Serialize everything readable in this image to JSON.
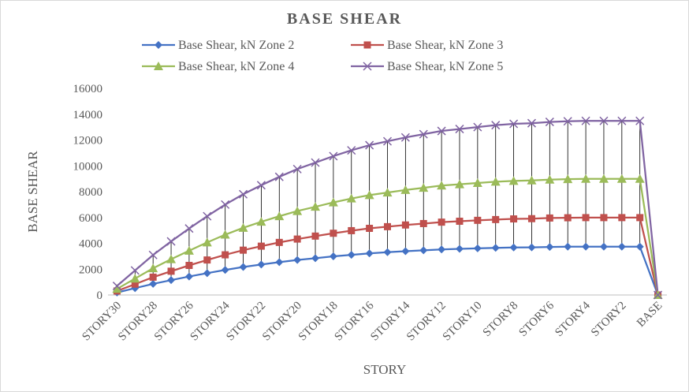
{
  "chart_data": {
    "type": "line",
    "title": "BASE SHEAR",
    "x_label": "STORY",
    "y_label": "BASE SHEAR",
    "categories": [
      "STORY30",
      null,
      "STORY28",
      null,
      "STORY26",
      null,
      "STORY24",
      null,
      "STORY22",
      null,
      "STORY20",
      null,
      "STORY18",
      null,
      "STORY16",
      null,
      "STORY14",
      null,
      "STORY12",
      null,
      "STORY10",
      null,
      "STORY8",
      null,
      "STORY6",
      null,
      "STORY4",
      null,
      "STORY2",
      null,
      "BASE"
    ],
    "series": [
      {
        "name": "Base Shear, kN Zone 2",
        "color": "#4472c4",
        "marker": "diamond",
        "values": [
          190,
          530,
          860,
          1150,
          1430,
          1690,
          1940,
          2170,
          2360,
          2540,
          2710,
          2850,
          2990,
          3110,
          3220,
          3310,
          3390,
          3460,
          3530,
          3570,
          3610,
          3650,
          3680,
          3690,
          3720,
          3740,
          3740,
          3740,
          3740,
          3740,
          0
        ]
      },
      {
        "name": "Base Shear, kN Zone 3",
        "color": "#c0504d",
        "marker": "square",
        "values": [
          310,
          840,
          1380,
          1840,
          2290,
          2710,
          3110,
          3470,
          3780,
          4070,
          4330,
          4560,
          4780,
          4980,
          5160,
          5290,
          5420,
          5530,
          5640,
          5710,
          5780,
          5840,
          5890,
          5910,
          5960,
          5980,
          5990,
          5990,
          5990,
          5990,
          0
        ]
      },
      {
        "name": "Base Shear, kN Zone 4",
        "color": "#9bbb59",
        "marker": "triangle",
        "values": [
          470,
          1270,
          2070,
          2770,
          3430,
          4070,
          4670,
          5200,
          5670,
          6100,
          6500,
          6830,
          7170,
          7470,
          7730,
          7930,
          8130,
          8300,
          8470,
          8570,
          8670,
          8770,
          8830,
          8870,
          8930,
          8970,
          8990,
          8990,
          8990,
          8990,
          0
        ]
      },
      {
        "name": "Base Shear, kN Zone 5",
        "color": "#8064a2",
        "marker": "x",
        "values": [
          700,
          1900,
          3100,
          4150,
          5150,
          6100,
          7000,
          7800,
          8500,
          9150,
          9750,
          10250,
          10750,
          11200,
          11600,
          11900,
          12200,
          12450,
          12700,
          12850,
          13000,
          13150,
          13250,
          13300,
          13400,
          13450,
          13480,
          13480,
          13480,
          13480,
          0
        ]
      }
    ],
    "ylim": [
      0,
      16000
    ],
    "yticks": [
      0,
      2000,
      4000,
      6000,
      8000,
      10000,
      12000,
      14000,
      16000
    ],
    "grid": false,
    "high_low_lines": true,
    "legend": "top"
  }
}
